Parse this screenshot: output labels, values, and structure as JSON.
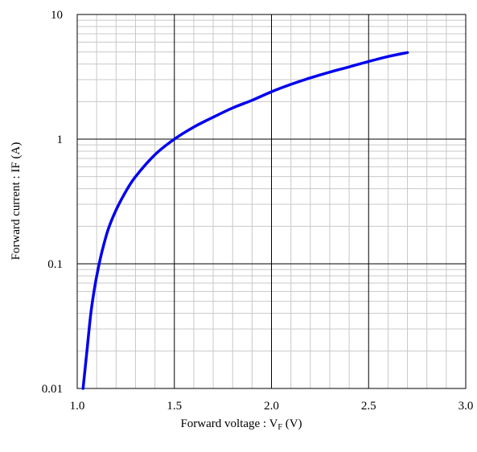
{
  "chart_data": {
    "type": "line",
    "xlabel": "Forward voltage : V",
    "xlabel_subscript": "F",
    "xlabel_unit": " (V)",
    "ylabel": "Forward current : IF (A)",
    "xlim": [
      1.0,
      3.0
    ],
    "ylim": [
      0.01,
      10
    ],
    "y_scale": "log",
    "x_ticks": [
      "1.0",
      "1.5",
      "2.0",
      "2.5",
      "3.0"
    ],
    "y_ticks": [
      "0.01",
      "0.1",
      "1",
      "10"
    ],
    "grid": true,
    "series_color": "#0000ee",
    "series": [
      {
        "x": [
          1.03,
          1.05,
          1.07,
          1.09,
          1.11,
          1.13,
          1.16,
          1.2,
          1.25,
          1.3,
          1.4,
          1.5,
          1.6,
          1.7,
          1.8,
          1.9,
          2.0,
          2.1,
          2.2,
          2.3,
          2.4,
          2.5,
          2.6,
          2.7
        ],
        "y": [
          0.01,
          0.02,
          0.04,
          0.065,
          0.095,
          0.13,
          0.19,
          0.27,
          0.38,
          0.5,
          0.75,
          1.0,
          1.25,
          1.5,
          1.78,
          2.05,
          2.4,
          2.75,
          3.1,
          3.45,
          3.8,
          4.2,
          4.6,
          4.95
        ]
      }
    ]
  }
}
